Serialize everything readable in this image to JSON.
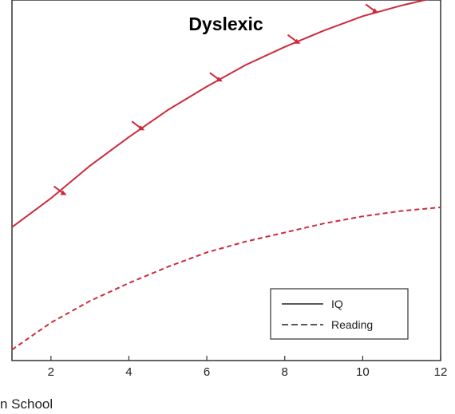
{
  "colors": {
    "series": "#cc2a3a",
    "axis": "#333333"
  },
  "chart_data": {
    "type": "line",
    "title": "Dyslexic",
    "xlabel": "n School",
    "ylabel": "",
    "xlim": [
      1,
      12
    ],
    "ylim": [
      0,
      100
    ],
    "x_ticks": [
      2,
      4,
      6,
      8,
      10,
      12
    ],
    "grid": false,
    "legend_position": "bottom-right",
    "series": [
      {
        "name": "IQ",
        "style": "solid",
        "x": [
          1,
          2,
          3,
          4,
          5,
          6,
          7,
          8,
          9,
          10,
          11,
          12
        ],
        "y": [
          37,
          45,
          54,
          62,
          69.5,
          76,
          82,
          87,
          91.5,
          95.5,
          98.5,
          101
        ]
      },
      {
        "name": "Reading",
        "style": "dashed",
        "x": [
          1,
          2,
          3,
          4,
          5,
          6,
          7,
          8,
          9,
          10,
          11,
          12
        ],
        "y": [
          3,
          10.5,
          16.5,
          21.5,
          26,
          30,
          33,
          35.5,
          38,
          40,
          41.5,
          42.5
        ]
      }
    ],
    "annotations": [
      {
        "type": "arrow",
        "x": 2.2,
        "y": 47
      },
      {
        "type": "arrow",
        "x": 4.2,
        "y": 65
      },
      {
        "type": "arrow",
        "x": 6.2,
        "y": 78.5
      },
      {
        "type": "arrow",
        "x": 8.2,
        "y": 89
      },
      {
        "type": "arrow",
        "x": 10.2,
        "y": 97.5
      }
    ]
  }
}
